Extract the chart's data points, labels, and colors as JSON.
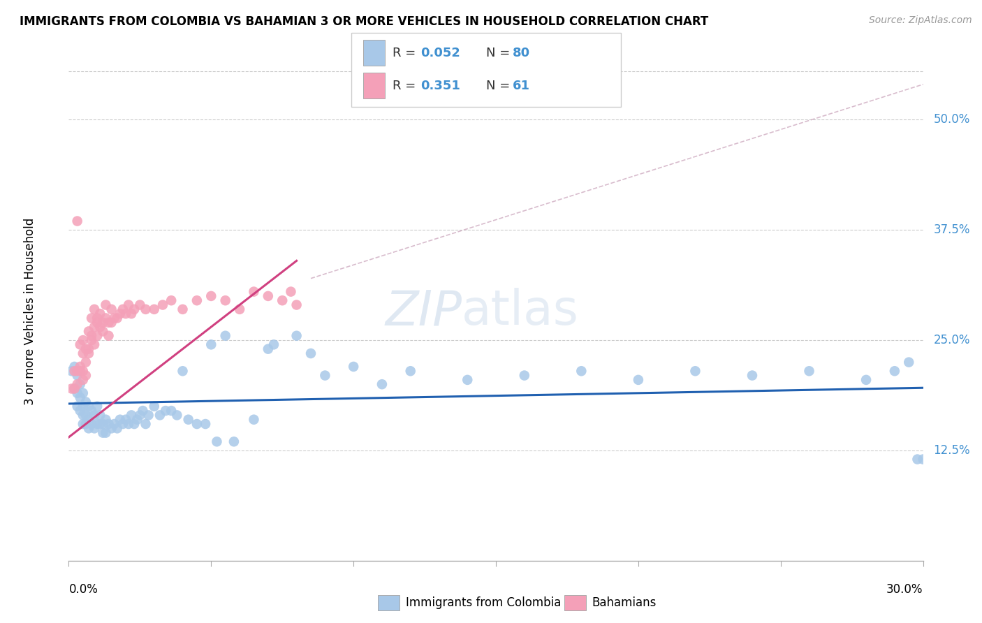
{
  "title": "IMMIGRANTS FROM COLOMBIA VS BAHAMIAN 3 OR MORE VEHICLES IN HOUSEHOLD CORRELATION CHART",
  "source": "Source: ZipAtlas.com",
  "ylabel": "3 or more Vehicles in Household",
  "ytick_labels": [
    "50.0%",
    "37.5%",
    "25.0%",
    "12.5%"
  ],
  "ytick_values": [
    0.5,
    0.375,
    0.25,
    0.125
  ],
  "xmin": 0.0,
  "xmax": 0.3,
  "ymin": 0.0,
  "ymax": 0.565,
  "color_blue": "#a8c8e8",
  "color_pink": "#f4a0b8",
  "color_blue_text": "#4090d0",
  "color_line_blue": "#2060b0",
  "color_line_pink": "#d04080",
  "legend_label1": "Immigrants from Colombia",
  "legend_label2": "Bahamians",
  "watermark_zip": "ZIP",
  "watermark_atlas": "atlas",
  "background_color": "#ffffff",
  "grid_color": "#cccccc",
  "blue_trendline": [
    0.0,
    0.3,
    0.178,
    0.196
  ],
  "pink_trendline": [
    0.0,
    0.08,
    0.14,
    0.34
  ],
  "diag_line": [
    0.085,
    0.3,
    0.32,
    0.54
  ],
  "blue_x": [
    0.001,
    0.002,
    0.002,
    0.003,
    0.003,
    0.003,
    0.004,
    0.004,
    0.004,
    0.005,
    0.005,
    0.005,
    0.005,
    0.006,
    0.006,
    0.006,
    0.007,
    0.007,
    0.007,
    0.008,
    0.008,
    0.009,
    0.009,
    0.01,
    0.01,
    0.011,
    0.011,
    0.012,
    0.012,
    0.013,
    0.013,
    0.014,
    0.015,
    0.016,
    0.017,
    0.018,
    0.019,
    0.02,
    0.021,
    0.022,
    0.023,
    0.024,
    0.025,
    0.026,
    0.027,
    0.028,
    0.03,
    0.032,
    0.034,
    0.036,
    0.038,
    0.04,
    0.042,
    0.045,
    0.048,
    0.052,
    0.058,
    0.065,
    0.072,
    0.08,
    0.09,
    0.1,
    0.11,
    0.12,
    0.14,
    0.16,
    0.18,
    0.2,
    0.22,
    0.24,
    0.26,
    0.28,
    0.29,
    0.295,
    0.298,
    0.3,
    0.05,
    0.055,
    0.07,
    0.085
  ],
  "blue_y": [
    0.215,
    0.22,
    0.195,
    0.21,
    0.19,
    0.175,
    0.2,
    0.185,
    0.17,
    0.19,
    0.175,
    0.165,
    0.155,
    0.18,
    0.165,
    0.155,
    0.175,
    0.16,
    0.15,
    0.17,
    0.155,
    0.165,
    0.15,
    0.175,
    0.155,
    0.165,
    0.155,
    0.155,
    0.145,
    0.16,
    0.145,
    0.155,
    0.15,
    0.155,
    0.15,
    0.16,
    0.155,
    0.16,
    0.155,
    0.165,
    0.155,
    0.16,
    0.165,
    0.17,
    0.155,
    0.165,
    0.175,
    0.165,
    0.17,
    0.17,
    0.165,
    0.215,
    0.16,
    0.155,
    0.155,
    0.135,
    0.135,
    0.16,
    0.245,
    0.255,
    0.21,
    0.22,
    0.2,
    0.215,
    0.205,
    0.21,
    0.215,
    0.205,
    0.215,
    0.21,
    0.215,
    0.205,
    0.215,
    0.225,
    0.115,
    0.115,
    0.245,
    0.255,
    0.24,
    0.235
  ],
  "pink_x": [
    0.001,
    0.002,
    0.002,
    0.003,
    0.003,
    0.004,
    0.004,
    0.004,
    0.005,
    0.005,
    0.005,
    0.005,
    0.006,
    0.006,
    0.006,
    0.007,
    0.007,
    0.007,
    0.008,
    0.008,
    0.008,
    0.009,
    0.009,
    0.009,
    0.01,
    0.01,
    0.01,
    0.011,
    0.011,
    0.012,
    0.012,
    0.013,
    0.013,
    0.014,
    0.014,
    0.015,
    0.015,
    0.016,
    0.017,
    0.018,
    0.019,
    0.02,
    0.021,
    0.022,
    0.023,
    0.025,
    0.027,
    0.03,
    0.033,
    0.036,
    0.04,
    0.045,
    0.05,
    0.055,
    0.06,
    0.065,
    0.07,
    0.075,
    0.078,
    0.08,
    0.003
  ],
  "pink_y": [
    0.195,
    0.215,
    0.195,
    0.215,
    0.2,
    0.215,
    0.245,
    0.22,
    0.25,
    0.235,
    0.215,
    0.205,
    0.24,
    0.225,
    0.21,
    0.235,
    0.26,
    0.24,
    0.25,
    0.275,
    0.255,
    0.265,
    0.245,
    0.285,
    0.27,
    0.255,
    0.275,
    0.265,
    0.28,
    0.27,
    0.26,
    0.275,
    0.29,
    0.27,
    0.255,
    0.27,
    0.285,
    0.275,
    0.275,
    0.28,
    0.285,
    0.28,
    0.29,
    0.28,
    0.285,
    0.29,
    0.285,
    0.285,
    0.29,
    0.295,
    0.285,
    0.295,
    0.3,
    0.295,
    0.285,
    0.305,
    0.3,
    0.295,
    0.305,
    0.29,
    0.385
  ]
}
